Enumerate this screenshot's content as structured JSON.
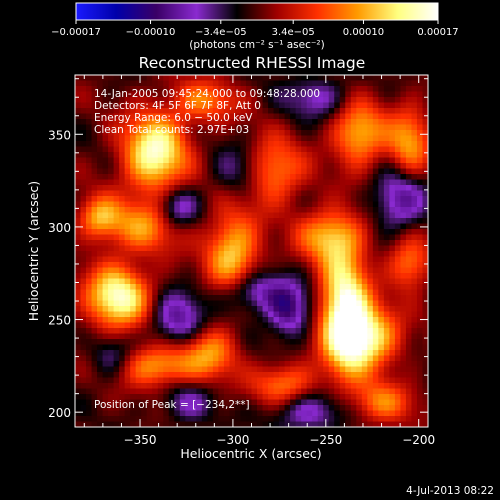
{
  "chart_data": {
    "type": "heatmap",
    "title": "Reconstructed RHESSI Image",
    "xlabel": "Heliocentric X (arcsec)",
    "ylabel": "Heliocentric Y (arcsec)",
    "xlim": [
      -385,
      -195
    ],
    "ylim": [
      192,
      382
    ],
    "x_ticks": [
      -350,
      -300,
      -250,
      -200
    ],
    "x_tick_labels": [
      "−350",
      "−300",
      "−250",
      "−200"
    ],
    "y_ticks": [
      200,
      250,
      300,
      350
    ],
    "y_tick_labels": [
      "200",
      "250",
      "300",
      "350"
    ],
    "colorbar": {
      "range": [
        -0.00017,
        0.00017
      ],
      "ticks": [
        -0.00017,
        -0.0001,
        -3.4e-05,
        3.4e-05,
        0.0001,
        0.00017
      ],
      "tick_labels": [
        "−0.00017",
        "−0.00010",
        "−3.4e−05",
        "3.4e−05",
        "0.00010",
        "0.00017"
      ],
      "unit_label": "(photons cm⁻² s⁻¹ asec⁻²)",
      "colors": [
        "#1a1aff",
        "#0000aa",
        "#3a0066",
        "#8a2ad0",
        "#000000",
        "#a00000",
        "#ff3000",
        "#ff9a00",
        "#ffff80",
        "#ffffff"
      ]
    },
    "annotations": [
      "14-Jan-2005 09:45:24.000 to 09:48:28.000",
      "Detectors: 4F 5F 6F 7F 8F, Att 0",
      "Energy Range: 6.0 − 50.0 keV",
      "Clean     Total counts: 2.97E+03",
      "Position of Peak = [−234,2**]"
    ],
    "sources": [
      {
        "x": -240,
        "y": 255,
        "amp": 1.0,
        "sx": 9,
        "sy": 22
      },
      {
        "x": -228,
        "y": 240,
        "amp": 0.8,
        "sx": 12,
        "sy": 12
      },
      {
        "x": -248,
        "y": 295,
        "amp": 0.6,
        "sx": 12,
        "sy": 10
      },
      {
        "x": -342,
        "y": 340,
        "amp": 0.9,
        "sx": 12,
        "sy": 15
      },
      {
        "x": -348,
        "y": 300,
        "amp": 0.5,
        "sx": 14,
        "sy": 10
      },
      {
        "x": -362,
        "y": 262,
        "amp": 0.9,
        "sx": 12,
        "sy": 12
      },
      {
        "x": -372,
        "y": 305,
        "amp": 0.55,
        "sx": 8,
        "sy": 8
      },
      {
        "x": -340,
        "y": 225,
        "amp": 0.6,
        "sx": 14,
        "sy": 8
      },
      {
        "x": -312,
        "y": 232,
        "amp": 0.5,
        "sx": 10,
        "sy": 10
      },
      {
        "x": -300,
        "y": 285,
        "amp": 0.7,
        "sx": 10,
        "sy": 16
      },
      {
        "x": -280,
        "y": 330,
        "amp": 0.6,
        "sx": 12,
        "sy": 12
      },
      {
        "x": -315,
        "y": 368,
        "amp": 0.45,
        "sx": 12,
        "sy": 8
      },
      {
        "x": -232,
        "y": 350,
        "amp": 0.65,
        "sx": 10,
        "sy": 12
      },
      {
        "x": -205,
        "y": 345,
        "amp": 0.55,
        "sx": 8,
        "sy": 14
      },
      {
        "x": -205,
        "y": 280,
        "amp": 0.5,
        "sx": 8,
        "sy": 10
      },
      {
        "x": -272,
        "y": 215,
        "amp": 0.5,
        "sx": 12,
        "sy": 8
      },
      {
        "x": -220,
        "y": 205,
        "amp": 0.45,
        "sx": 12,
        "sy": 8
      },
      {
        "x": -290,
        "y": 265,
        "amp": -0.5,
        "sx": 12,
        "sy": 8
      },
      {
        "x": -330,
        "y": 250,
        "amp": -0.5,
        "sx": 10,
        "sy": 10
      },
      {
        "x": -270,
        "y": 255,
        "amp": -0.55,
        "sx": 8,
        "sy": 10
      },
      {
        "x": -295,
        "y": 330,
        "amp": -0.4,
        "sx": 10,
        "sy": 10
      },
      {
        "x": -330,
        "y": 310,
        "amp": -0.45,
        "sx": 8,
        "sy": 8
      },
      {
        "x": -210,
        "y": 315,
        "amp": -0.5,
        "sx": 10,
        "sy": 12
      },
      {
        "x": -260,
        "y": 200,
        "amp": -0.4,
        "sx": 14,
        "sy": 8
      },
      {
        "x": -325,
        "y": 205,
        "amp": -0.3,
        "sx": 10,
        "sy": 8
      },
      {
        "x": -365,
        "y": 230,
        "amp": -0.3,
        "sx": 8,
        "sy": 8
      },
      {
        "x": -255,
        "y": 370,
        "amp": -0.35,
        "sx": 12,
        "sy": 8
      }
    ]
  },
  "footer": {
    "date": "4-Jul-2013 08:22"
  }
}
